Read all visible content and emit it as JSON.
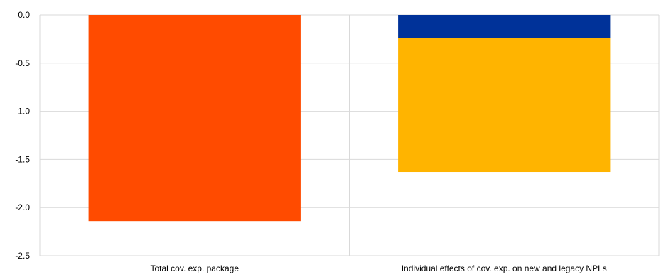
{
  "chart_data": {
    "type": "bar",
    "stacked": true,
    "title": "",
    "xlabel": "",
    "ylabel": "",
    "categories": [
      "Total cov. exp. package",
      "Individual effects of cov. exp. on new and legacy NPLs"
    ],
    "ylim": [
      -2.5,
      0.0
    ],
    "yticks": [
      0.0,
      -0.5,
      -1.0,
      -1.5,
      -2.0,
      -2.5
    ],
    "ytick_labels": [
      "0.0",
      "-0.5",
      "-1.0",
      "-1.5",
      "-2.0",
      "-2.5"
    ],
    "grid": true,
    "legend": "none",
    "series": [
      {
        "values": [
          -2.14,
          0
        ],
        "color": "#FF4B00"
      },
      {
        "values": [
          0,
          -0.24
        ],
        "color": "#003299"
      },
      {
        "values": [
          0,
          -1.39
        ],
        "color": "#FFB400"
      }
    ]
  }
}
